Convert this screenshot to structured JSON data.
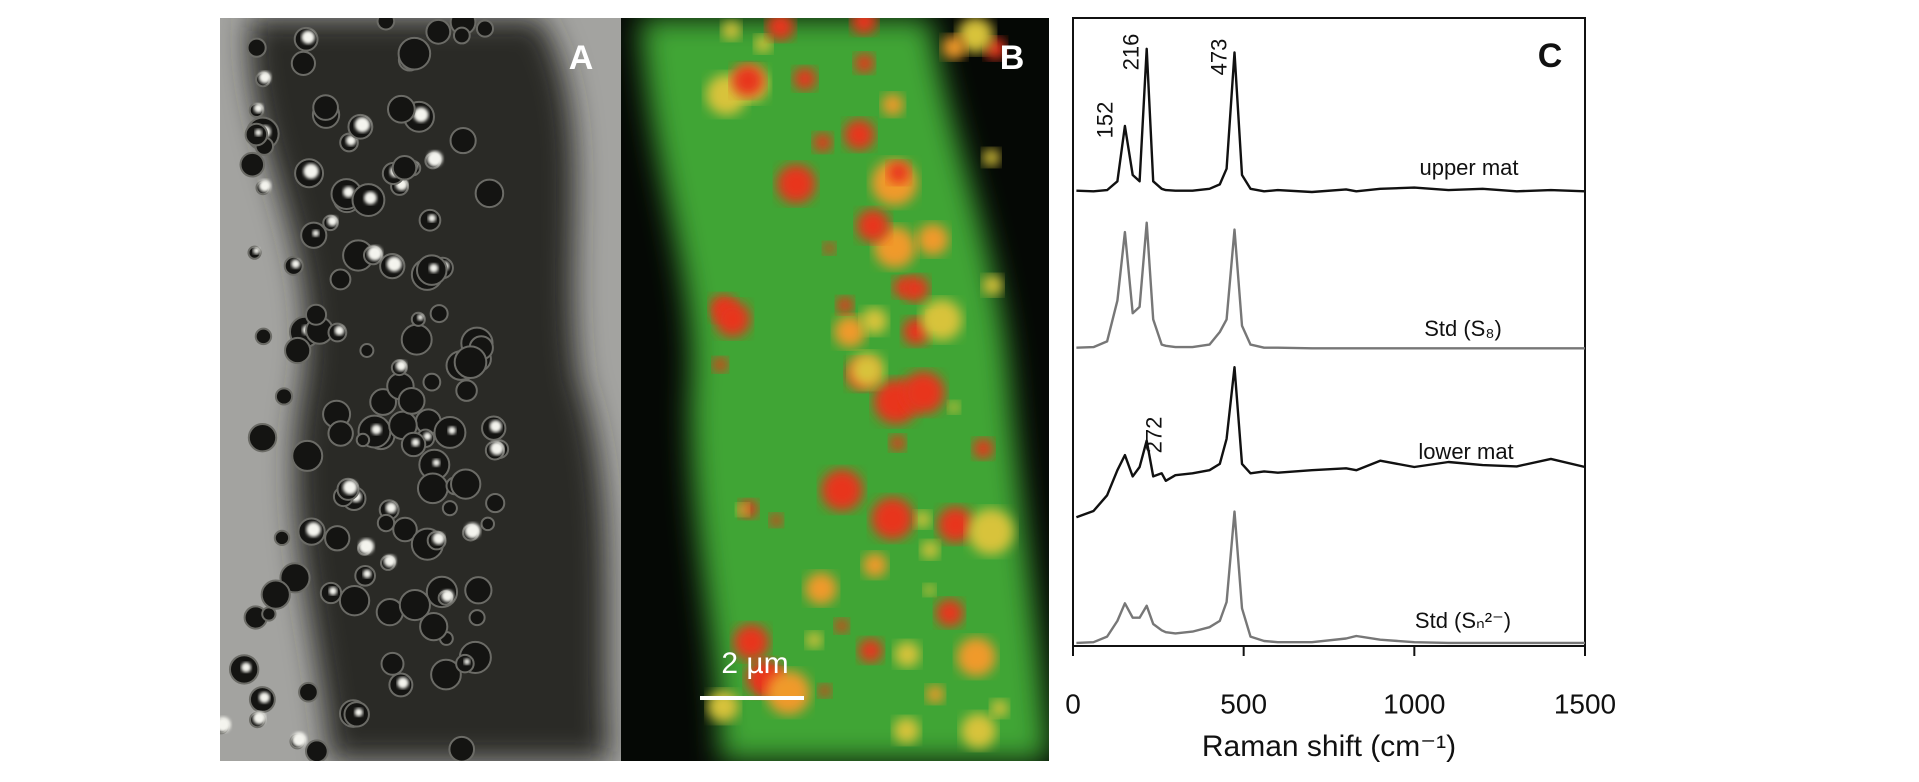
{
  "figure": {
    "panel_labels": [
      "A",
      "B",
      "C"
    ],
    "scale_bar": "2 µm"
  },
  "chart_data": {
    "type": "line",
    "xlabel": "Raman shift (cm⁻¹)",
    "xlim": [
      0,
      1500
    ],
    "xticks": [
      0,
      500,
      1000,
      1500
    ],
    "ylim": [
      0,
      100
    ],
    "x": [
      10,
      60,
      100,
      130,
      152,
      175,
      195,
      216,
      235,
      260,
      272,
      300,
      350,
      400,
      430,
      450,
      473,
      495,
      520,
      560,
      600,
      700,
      800,
      830,
      900,
      1000,
      1100,
      1200,
      1300,
      1400,
      1500
    ],
    "series": [
      {
        "name": "upper mat",
        "color": "#111111",
        "values": [
          72.5,
          72.4,
          72.6,
          74,
          82.8,
          75,
          74,
          95.1,
          74,
          72.8,
          72.6,
          72.5,
          72.5,
          72.8,
          73.5,
          76,
          94.5,
          75,
          72.8,
          72.4,
          72.6,
          72.3,
          72.7,
          72.4,
          72.8,
          73,
          72.6,
          72.8,
          72.4,
          72.6,
          72.4
        ]
      },
      {
        "name": "Std  (S₈)",
        "color": "#777777",
        "values": [
          47.5,
          47.6,
          48.5,
          55,
          65.9,
          53,
          54,
          67.4,
          52,
          48,
          47.8,
          47.6,
          47.6,
          48,
          50,
          52,
          66.3,
          51,
          48,
          47.5,
          47.5,
          47.4,
          47.4,
          47.4,
          47.4,
          47.4,
          47.4,
          47.4,
          47.4,
          47.4,
          47.4
        ]
      },
      {
        "name": "lower mat",
        "color": "#111111",
        "values": [
          20.5,
          21.5,
          24,
          28,
          30.4,
          27,
          28.5,
          32.7,
          27,
          27.5,
          26.3,
          27.2,
          27.5,
          28,
          29,
          33,
          44.4,
          29,
          27.5,
          27.8,
          27.6,
          28,
          28.3,
          28,
          29.5,
          28.5,
          29.3,
          28.8,
          28.6,
          29.8,
          28.5
        ]
      },
      {
        "name": "Std (Sₙ²⁻)",
        "color": "#777777",
        "values": [
          0.5,
          0.6,
          1.5,
          4,
          6.8,
          4.5,
          4.5,
          6.4,
          3.5,
          2.5,
          2.2,
          2,
          2.3,
          3,
          4,
          7,
          21.4,
          6,
          1.5,
          0.8,
          0.6,
          0.6,
          1.2,
          1.6,
          1,
          0.6,
          0.5,
          0.5,
          0.5,
          0.5,
          0.5
        ]
      }
    ],
    "annotations": [
      "152",
      "216",
      "473",
      "272"
    ]
  }
}
